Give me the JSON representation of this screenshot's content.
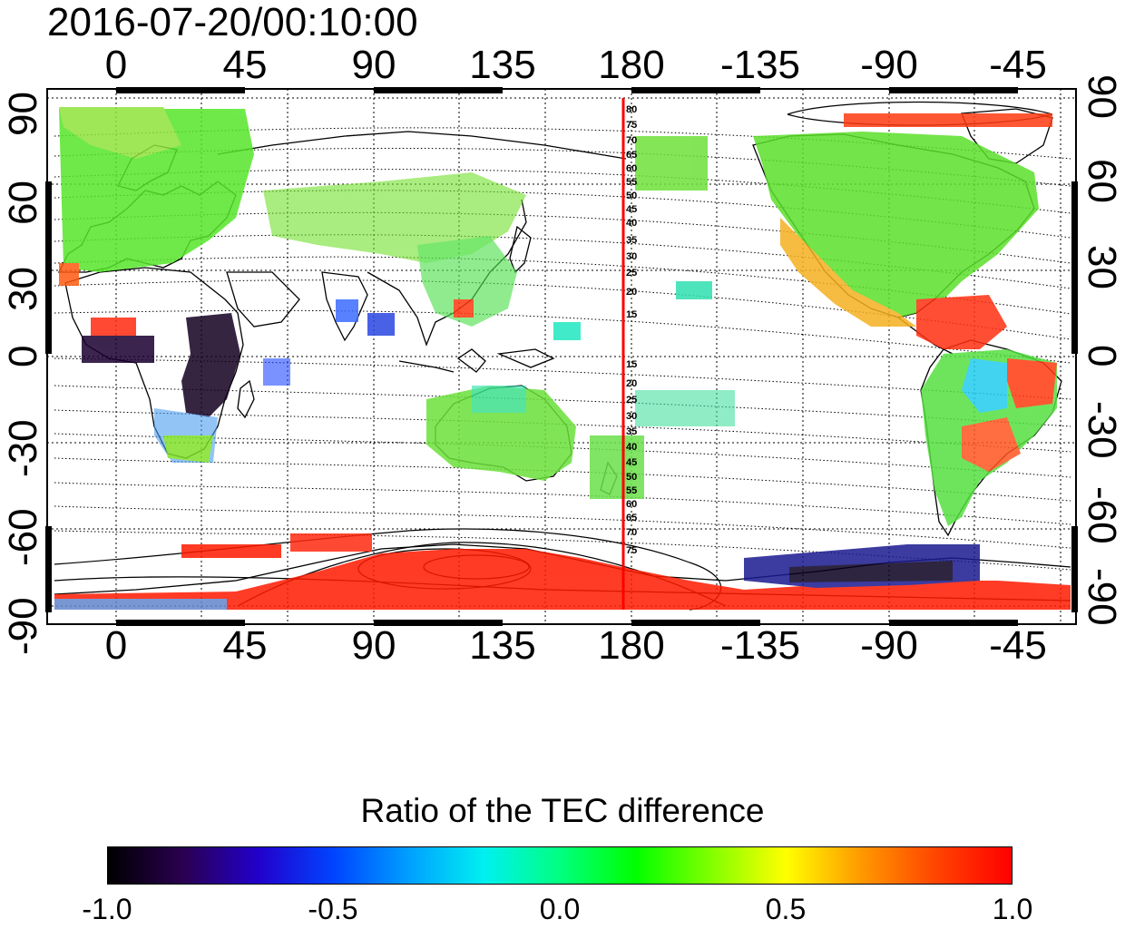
{
  "timestamp": "2016-07-20/00:10:00",
  "map": {
    "x_ticks_top": [
      "0",
      "45",
      "90",
      "135",
      "180",
      "-135",
      "-90",
      "-45"
    ],
    "x_ticks_bottom": [
      "0",
      "45",
      "90",
      "135",
      "180",
      "-135",
      "-90",
      "-45"
    ],
    "y_ticks_left": [
      "90",
      "60",
      "30",
      "0",
      "-30",
      "-60",
      "-90"
    ],
    "y_ticks_right": [
      "90",
      "60",
      "30",
      "0",
      "-30",
      "-60",
      "-90"
    ],
    "terminator_color": "#ff0000",
    "contour_labels_north": [
      "80",
      "75",
      "70",
      "65",
      "60",
      "55",
      "50",
      "45",
      "40",
      "35",
      "30",
      "25",
      "20",
      "15"
    ],
    "contour_labels_south": [
      "15",
      "20",
      "25",
      "30",
      "35",
      "40",
      "45",
      "50",
      "55",
      "60",
      "65",
      "70",
      "75"
    ]
  },
  "colorbar": {
    "title": "Ratio of the TEC difference",
    "tick_labels": [
      "-1.0",
      "-0.5",
      "0.0",
      "0.5",
      "1.0"
    ],
    "tick_values": [
      -1.0,
      -0.5,
      0.0,
      0.5,
      1.0
    ],
    "colors": [
      "#000000",
      "#2a0050",
      "#2200cc",
      "#0044ff",
      "#00a0ff",
      "#00f0f0",
      "#00ff80",
      "#00ff00",
      "#80ff00",
      "#ffff00",
      "#ff9900",
      "#ff4400",
      "#ff0000"
    ]
  }
}
